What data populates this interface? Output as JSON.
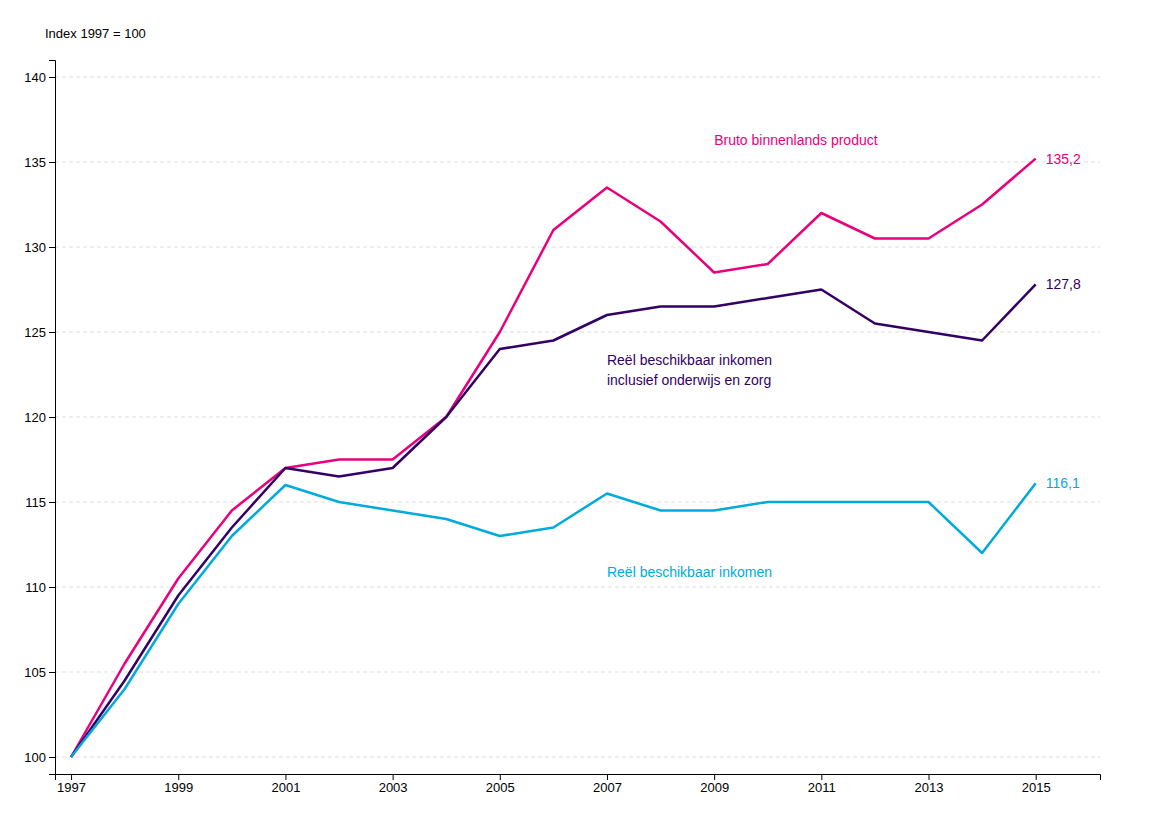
{
  "chart_data": {
    "type": "line",
    "ylabel": "Index 1997 = 100",
    "x": [
      1997,
      1998,
      1999,
      2000,
      2001,
      2002,
      2003,
      2004,
      2005,
      2006,
      2007,
      2008,
      2009,
      2010,
      2011,
      2012,
      2013,
      2014,
      2015
    ],
    "series": [
      {
        "name": "Bruto binnenlands product",
        "color": "#e8007d",
        "values": [
          100,
          105.5,
          110.5,
          114.5,
          117.0,
          117.5,
          117.5,
          120.0,
          125.0,
          131.0,
          133.5,
          131.5,
          128.5,
          129.0,
          132.0,
          130.5,
          130.5,
          132.5,
          135.2
        ],
        "value_labels": [
          null,
          null,
          null,
          null,
          null,
          null,
          null,
          null,
          null,
          null,
          null,
          null,
          null,
          null,
          null,
          null,
          null,
          null,
          "135,2"
        ]
      },
      {
        "name": "Reël beschikbaar inkomen\ninclusief onderwijs en zorg",
        "color": "#330066",
        "values": [
          100,
          104.5,
          109.5,
          113.5,
          117.0,
          116.5,
          117.0,
          120.0,
          124.0,
          124.5,
          126.0,
          126.5,
          126.5,
          127.0,
          127.5,
          125.5,
          125.0,
          124.5,
          127.8
        ],
        "value_labels": [
          null,
          null,
          null,
          null,
          null,
          null,
          null,
          null,
          null,
          null,
          null,
          null,
          null,
          null,
          null,
          null,
          null,
          null,
          "127,8"
        ]
      },
      {
        "name": "Reël beschikbaar inkomen",
        "color": "#00aadd",
        "values": [
          100,
          104.0,
          109.0,
          113.0,
          116.0,
          115.0,
          114.5,
          114.0,
          113.0,
          113.5,
          115.5,
          114.5,
          114.5,
          115.0,
          115.0,
          115.0,
          115.0,
          112.0,
          116.1
        ],
        "value_labels": [
          null,
          null,
          null,
          null,
          null,
          null,
          null,
          null,
          null,
          null,
          null,
          null,
          null,
          null,
          null,
          null,
          null,
          null,
          "116,1"
        ]
      }
    ],
    "xlim": [
      1996.7,
      2016.2
    ],
    "xticks": [
      1997,
      1999,
      2001,
      2003,
      2005,
      2007,
      2009,
      2011,
      2013,
      2015
    ],
    "ylim": [
      99,
      141
    ],
    "yticks": [
      100,
      105,
      110,
      115,
      120,
      125,
      130,
      135,
      140
    ],
    "grid": true
  }
}
